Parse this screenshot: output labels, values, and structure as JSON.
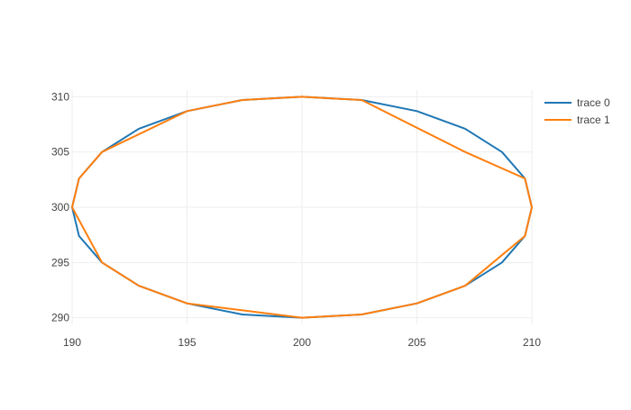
{
  "chart_data": {
    "type": "line",
    "title": "",
    "xlabel": "",
    "ylabel": "",
    "xlim": [
      190,
      210
    ],
    "ylim": [
      289.4,
      310.6
    ],
    "x_ticks": [
      190,
      195,
      200,
      205,
      210
    ],
    "y_ticks": [
      290,
      295,
      300,
      305,
      310
    ],
    "grid": true,
    "legend_position": "top-right",
    "series": [
      {
        "name": "trace 0",
        "color": "#1f77b4",
        "x": [
          210,
          209.7,
          208.7,
          207.1,
          205.0,
          202.6,
          200.0,
          197.4,
          195.0,
          192.9,
          191.3,
          190.3,
          190,
          190.3,
          191.3,
          192.9,
          195.0,
          197.4,
          200.0,
          202.6,
          205.0,
          207.1,
          208.7,
          209.7,
          210
        ],
        "y": [
          300,
          302.6,
          305.0,
          307.1,
          308.7,
          309.7,
          310.0,
          309.7,
          308.7,
          307.1,
          305.0,
          302.6,
          300,
          297.4,
          295.0,
          292.9,
          291.3,
          290.3,
          290.0,
          290.3,
          291.3,
          292.9,
          295.0,
          297.4,
          300
        ]
      },
      {
        "name": "trace 1",
        "color": "#ff7f0e",
        "x": [
          210,
          209.7,
          207.1,
          202.6,
          200.0,
          197.4,
          195.0,
          191.3,
          190.3,
          190,
          191.3,
          192.9,
          195.0,
          200.0,
          202.6,
          205.0,
          207.1,
          209.7,
          210
        ],
        "y": [
          300,
          302.6,
          305.0,
          309.7,
          310.0,
          309.7,
          308.7,
          305.0,
          302.6,
          300,
          295.0,
          292.9,
          291.3,
          290.0,
          290.3,
          291.3,
          292.9,
          297.4,
          300
        ]
      }
    ]
  }
}
